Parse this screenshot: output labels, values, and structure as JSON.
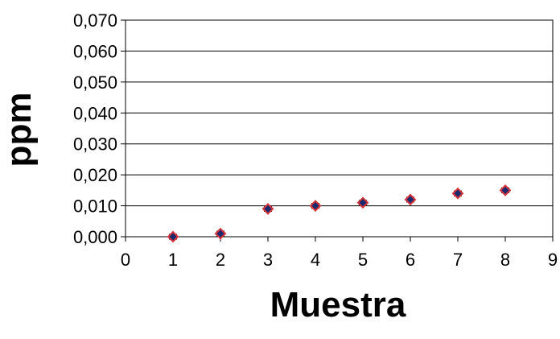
{
  "chart_data": {
    "type": "scatter",
    "title": "",
    "xlabel": "Muestra",
    "ylabel": "ppm",
    "xlim": [
      0,
      9
    ],
    "ylim": [
      0,
      0.07
    ],
    "x_ticks": [
      "0",
      "1",
      "2",
      "3",
      "4",
      "5",
      "6",
      "7",
      "8",
      "9"
    ],
    "y_ticks": [
      "0,000",
      "0,010",
      "0,020",
      "0,030",
      "0,040",
      "0,050",
      "0,060",
      "0,070"
    ],
    "grid": "horizontal",
    "legend": "none",
    "series": [
      {
        "x": [
          1,
          2,
          3,
          4,
          5,
          6,
          7,
          8
        ],
        "y": [
          0.0,
          0.001,
          0.009,
          0.01,
          0.011,
          0.012,
          0.014,
          0.015
        ],
        "error": [
          0.0008,
          0.0008,
          0.0008,
          0.0008,
          0.0008,
          0.0008,
          0.0008,
          0.0008
        ]
      }
    ],
    "colors": {
      "marker_edge": "#d8343c",
      "marker_fill": "#1a2a6c",
      "grid": "#000000",
      "axis": "#000000"
    }
  }
}
